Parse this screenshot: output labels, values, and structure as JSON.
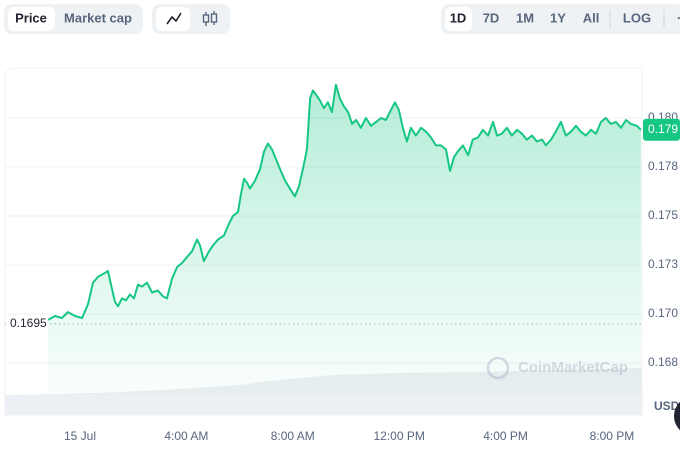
{
  "toolbar": {
    "metric_tabs": [
      "Price",
      "Market cap"
    ],
    "ranges": [
      "1D",
      "7D",
      "1M",
      "1Y",
      "All"
    ],
    "scale_button": "LOG"
  },
  "chart_data": {
    "type": "line",
    "color": "#16c784",
    "grid": true,
    "x": [
      -1.2,
      -0.94,
      -0.68,
      -0.45,
      -0.19,
      0.08,
      0.3,
      0.49,
      0.68,
      0.94,
      1.05,
      1.2,
      1.32,
      1.43,
      1.58,
      1.73,
      1.88,
      2.03,
      2.18,
      2.33,
      2.52,
      2.71,
      2.93,
      3.12,
      3.27,
      3.46,
      3.65,
      3.83,
      4.02,
      4.21,
      4.4,
      4.51,
      4.66,
      4.85,
      5.0,
      5.19,
      5.41,
      5.6,
      5.75,
      5.94,
      6.05,
      6.17,
      6.28,
      6.39,
      6.58,
      6.77,
      6.92,
      7.07,
      7.22,
      7.37,
      7.52,
      7.71,
      7.89,
      8.08,
      8.23,
      8.38,
      8.53,
      8.65,
      8.76,
      8.87,
      9.02,
      9.17,
      9.32,
      9.47,
      9.62,
      9.77,
      9.92,
      10.08,
      10.23,
      10.38,
      10.56,
      10.75,
      10.94,
      11.13,
      11.32,
      11.5,
      11.69,
      11.84,
      11.99,
      12.14,
      12.29,
      12.44,
      12.63,
      12.82,
      13.01,
      13.2,
      13.38,
      13.57,
      13.76,
      13.91,
      14.06,
      14.21,
      14.4,
      14.59,
      14.77,
      14.96,
      15.15,
      15.34,
      15.53,
      15.68,
      15.86,
      16.05,
      16.24,
      16.43,
      16.62,
      16.8,
      16.99,
      17.18,
      17.37,
      17.52,
      17.71,
      17.89,
      18.08,
      18.27,
      18.46,
      18.65,
      18.83,
      19.02,
      19.21,
      19.4,
      19.59,
      19.77,
      19.96,
      20.15,
      20.34,
      20.53,
      20.71,
      20.94,
      21.09
    ],
    "values": [
      0.1697,
      0.1699,
      0.1698,
      0.1701,
      0.1699,
      0.1698,
      0.1705,
      0.1716,
      0.1719,
      0.1721,
      0.1722,
      0.1713,
      0.1706,
      0.1704,
      0.1708,
      0.1707,
      0.171,
      0.1708,
      0.1715,
      0.1714,
      0.1716,
      0.1711,
      0.1712,
      0.1709,
      0.1708,
      0.1718,
      0.1724,
      0.1726,
      0.1729,
      0.1732,
      0.1738,
      0.1735,
      0.1727,
      0.1732,
      0.1735,
      0.1738,
      0.174,
      0.1746,
      0.175,
      0.1752,
      0.1761,
      0.1769,
      0.1767,
      0.1764,
      0.1768,
      0.1774,
      0.1783,
      0.1787,
      0.1784,
      0.1779,
      0.1774,
      0.1768,
      0.1764,
      0.176,
      0.1765,
      0.1774,
      0.1784,
      0.181,
      0.1814,
      0.1812,
      0.1809,
      0.1805,
      0.1808,
      0.1803,
      0.1817,
      0.181,
      0.1806,
      0.1803,
      0.1797,
      0.1799,
      0.1795,
      0.18,
      0.1796,
      0.1798,
      0.18,
      0.1799,
      0.1804,
      0.1808,
      0.1804,
      0.1795,
      0.1788,
      0.1795,
      0.1791,
      0.1795,
      0.1793,
      0.179,
      0.1786,
      0.1786,
      0.1784,
      0.1773,
      0.178,
      0.1783,
      0.1786,
      0.1781,
      0.1789,
      0.179,
      0.1794,
      0.1791,
      0.1798,
      0.1791,
      0.1792,
      0.1795,
      0.1791,
      0.1794,
      0.1792,
      0.1789,
      0.1791,
      0.1788,
      0.1789,
      0.1786,
      0.1789,
      0.1793,
      0.1798,
      0.1791,
      0.1793,
      0.1796,
      0.1793,
      0.1791,
      0.1794,
      0.1792,
      0.1798,
      0.18,
      0.1797,
      0.1798,
      0.1795,
      0.1799,
      0.1797,
      0.1796,
      0.1794
    ],
    "xlim": [
      -2.82,
      21.13
    ],
    "xticks": [
      {
        "value": 0,
        "label": "15 Jul"
      },
      {
        "value": 4,
        "label": "4:00 AM"
      },
      {
        "value": 8,
        "label": "8:00 AM"
      },
      {
        "value": 12,
        "label": "12:00 PM"
      },
      {
        "value": 16,
        "label": "4:00 PM"
      },
      {
        "value": 20,
        "label": "8:00 PM"
      }
    ],
    "ylim": [
      0.16587,
      0.18255
    ],
    "yticks": [
      {
        "value": 0.1675,
        "label": "0.168"
      },
      {
        "value": 0.17,
        "label": "0.170"
      },
      {
        "value": 0.1725,
        "label": "0.173"
      },
      {
        "value": 0.175,
        "label": "0.175"
      },
      {
        "value": 0.1775,
        "label": "0.178"
      },
      {
        "value": 0.18,
        "label": "0.180"
      }
    ],
    "open_price": 0.1695,
    "current_price": {
      "value": 0.1794,
      "label": "0.179"
    },
    "currency": "USD",
    "watermark": "CoinMarketCap"
  }
}
